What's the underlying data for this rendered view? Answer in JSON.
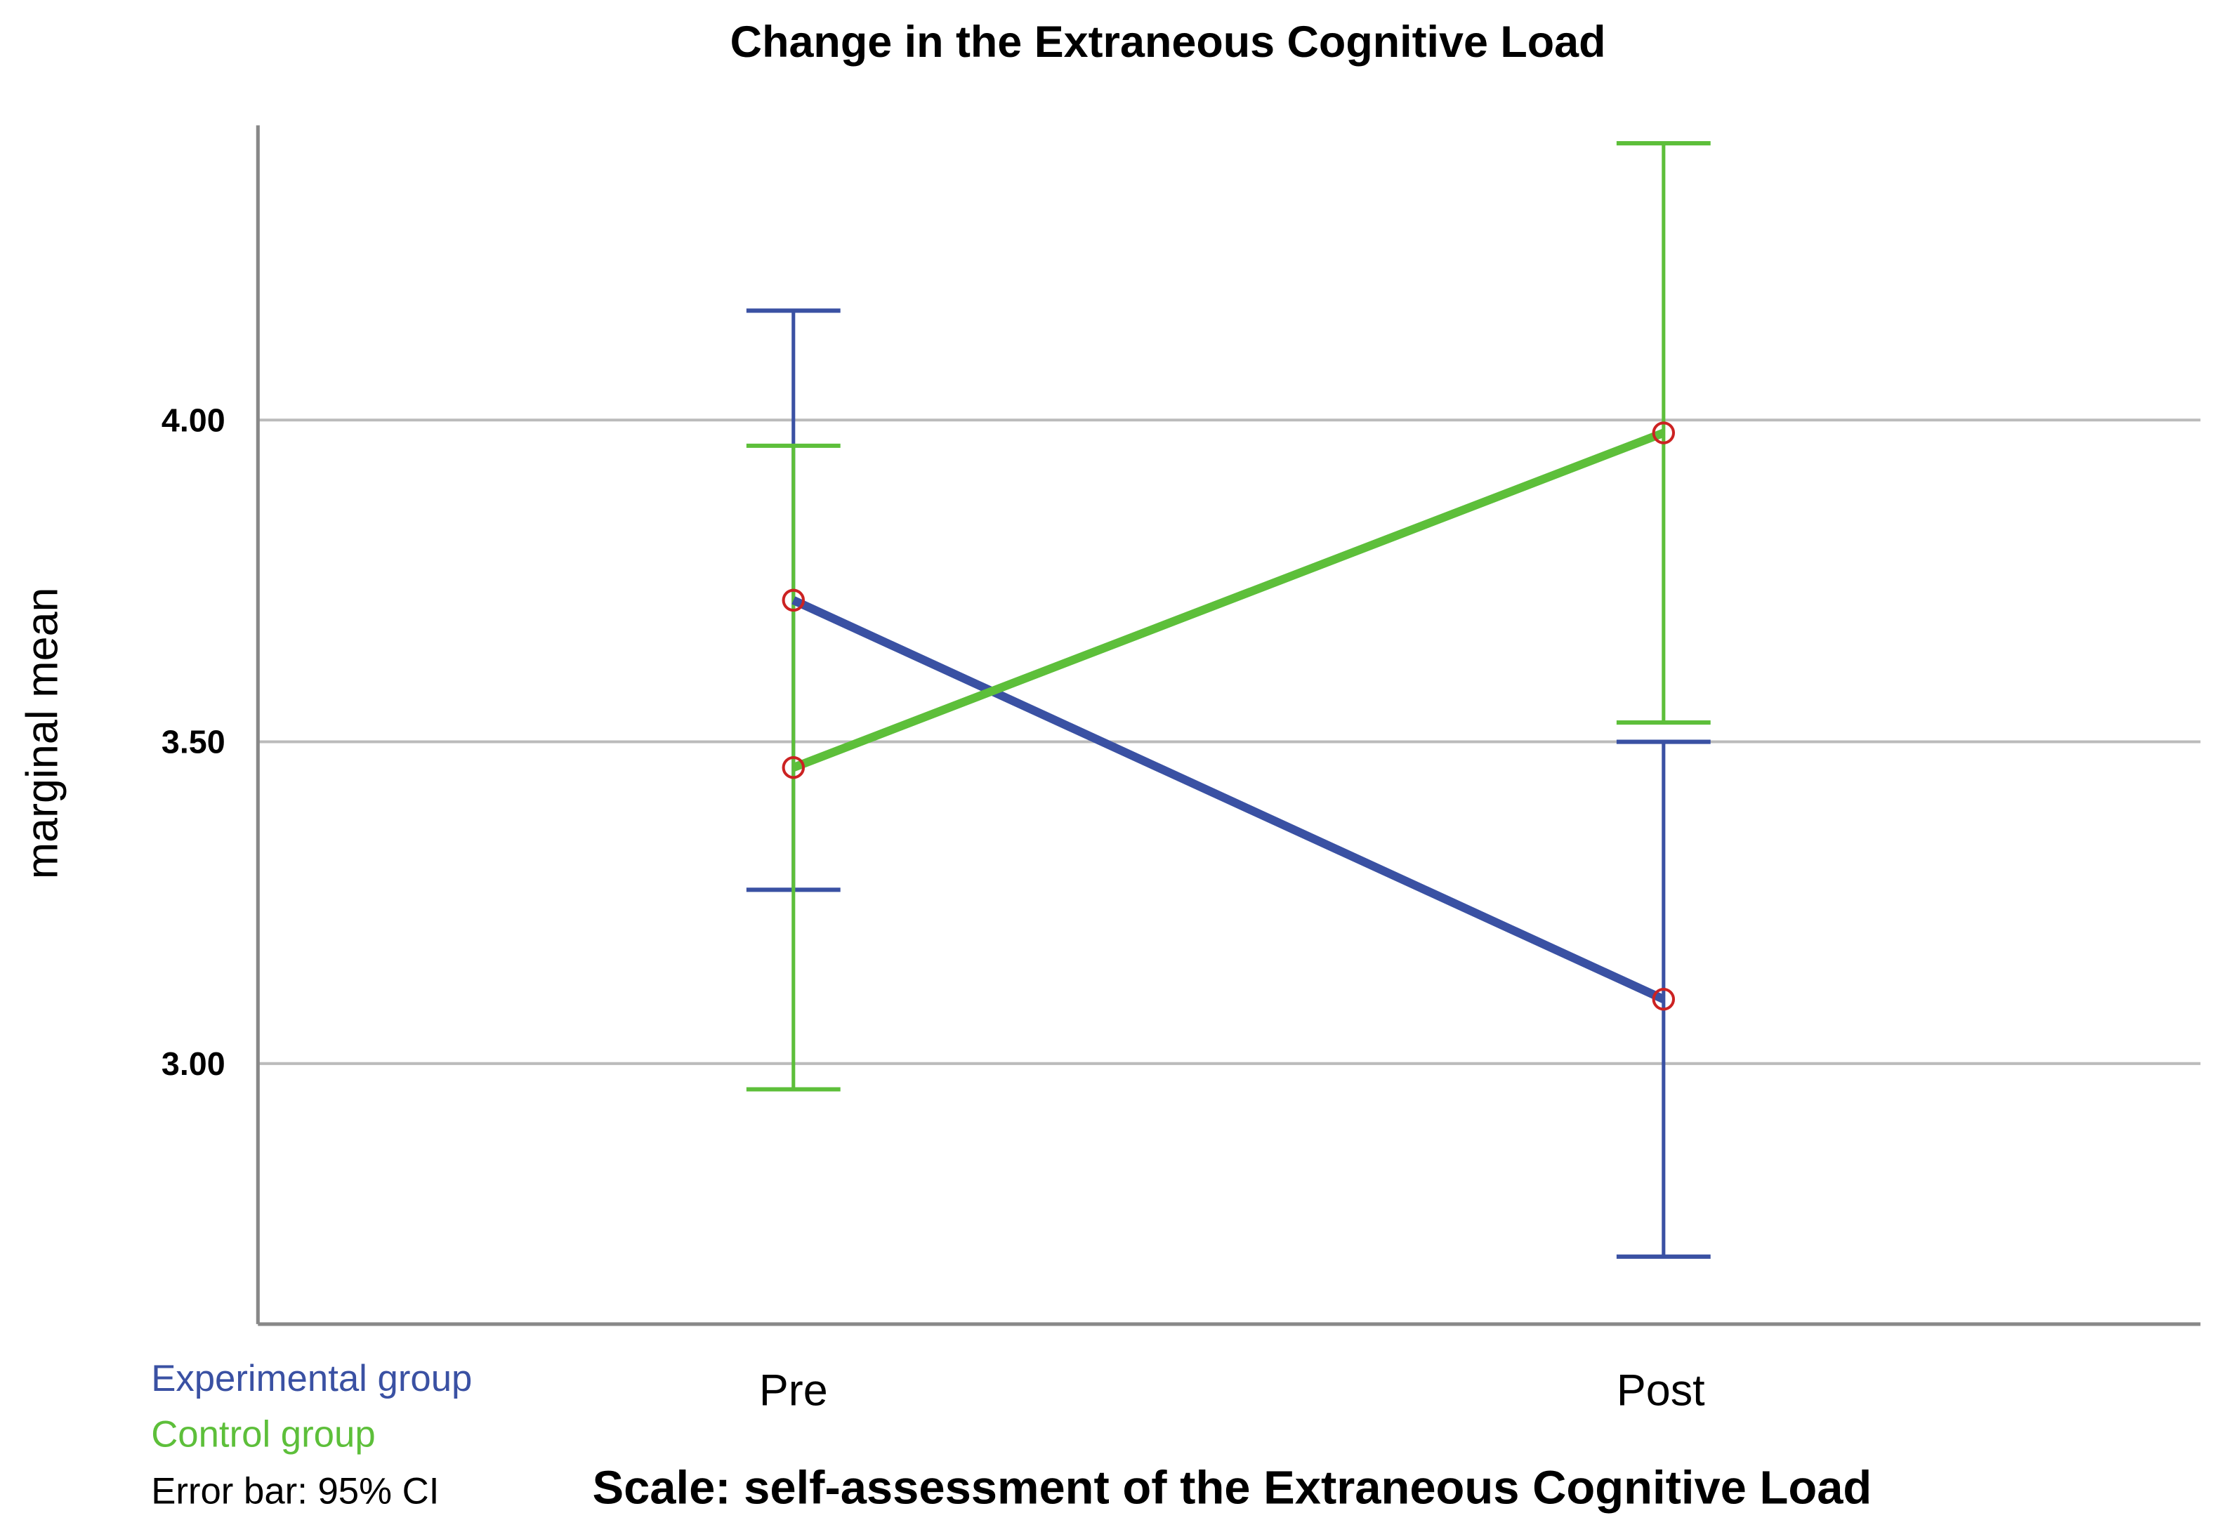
{
  "chart_data": {
    "type": "line",
    "title": "Change in the Extraneous Cognitive Load",
    "xlabel": "Scale: self-assessment of the Extraneous Cognitive Load",
    "ylabel": "marginal mean",
    "categories": [
      "Pre",
      "Post"
    ],
    "ylim": [
      2.595,
      4.46
    ],
    "yticks": [
      3.0,
      3.5,
      4.0
    ],
    "ytick_labels": [
      "3.00",
      "3.50",
      "4.00"
    ],
    "grid": true,
    "legend_position": "bottom-left",
    "series": [
      {
        "name": "Experimental group",
        "color": "#3a51a3",
        "values": [
          3.72,
          3.1
        ],
        "ci_lower": [
          3.27,
          2.7
        ],
        "ci_upper": [
          4.17,
          3.5
        ]
      },
      {
        "name": "Control group",
        "color": "#5dbf3a",
        "values": [
          3.46,
          3.98
        ],
        "ci_lower": [
          2.96,
          3.53
        ],
        "ci_upper": [
          3.96,
          4.43
        ]
      }
    ],
    "marker_color": "#cc2222",
    "annotation": "Error bar: 95% CI"
  }
}
